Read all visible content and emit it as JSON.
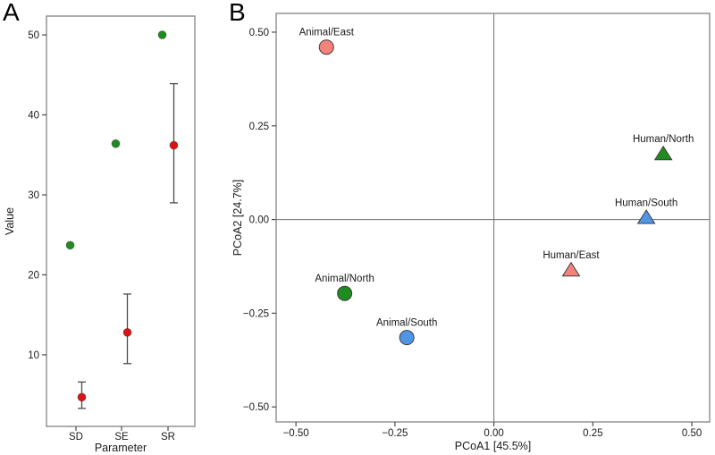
{
  "figure": {
    "panels": [
      {
        "letter": "A"
      },
      {
        "letter": "B"
      }
    ]
  },
  "styles": {
    "panel_border": "#8c8c8c",
    "zero_line": "#6e6e6e",
    "tick_color": "#4d4d4d",
    "text_color": "#1a1a1a",
    "errorbar_color": "#4d4d4d",
    "marker_stroke": "#3f3f3f"
  },
  "chart_data": [
    {
      "id": "panelA",
      "type": "scatter",
      "title": "",
      "xlabel": "Parameter",
      "ylabel": "Value",
      "categories": [
        "SD",
        "SE",
        "SR"
      ],
      "yticks": [
        10,
        20,
        30,
        40,
        50
      ],
      "ylim": [
        1.05,
        52.35
      ],
      "grid": false,
      "legend": "none",
      "series": [
        {
          "name": "green-points",
          "marker": "circle",
          "color": "#208b20",
          "values": [
            23.7,
            36.4,
            50.0
          ],
          "error_low": null,
          "error_high": null
        },
        {
          "name": "red-points-with-error-bars",
          "marker": "circle",
          "color": "#d91414",
          "values": [
            4.7,
            12.8,
            36.2
          ],
          "error_low": [
            3.3,
            8.9,
            29.0
          ],
          "error_high": [
            6.6,
            17.6,
            43.9
          ]
        }
      ]
    },
    {
      "id": "panelB",
      "type": "scatter",
      "title": "",
      "xlabel": "PCoA1 [45.5%]",
      "ylabel": "PCoA2 [24.7%]",
      "xticks": [
        -0.5,
        -0.25,
        0.0,
        0.25,
        0.5
      ],
      "yticks": [
        -0.5,
        -0.25,
        0.0,
        0.25,
        0.5
      ],
      "xlim": [
        -0.55,
        0.545
      ],
      "ylim": [
        -0.54,
        0.55
      ],
      "zero_lines": true,
      "grid": false,
      "legend": "none",
      "points": [
        {
          "label": "Animal/East",
          "x": -0.423,
          "y": 0.46,
          "shape": "circle",
          "color": "#f5837b"
        },
        {
          "label": "Animal/North",
          "x": -0.377,
          "y": -0.197,
          "shape": "circle",
          "color": "#208b20"
        },
        {
          "label": "Animal/South",
          "x": -0.22,
          "y": -0.315,
          "shape": "circle",
          "color": "#4e95e6"
        },
        {
          "label": "Human/East",
          "x": 0.195,
          "y": -0.135,
          "shape": "triangle",
          "color": "#f5837b"
        },
        {
          "label": "Human/North",
          "x": 0.428,
          "y": 0.175,
          "shape": "triangle",
          "color": "#208b20"
        },
        {
          "label": "Human/South",
          "x": 0.385,
          "y": 0.005,
          "shape": "triangle",
          "color": "#4e95e6"
        }
      ]
    }
  ]
}
